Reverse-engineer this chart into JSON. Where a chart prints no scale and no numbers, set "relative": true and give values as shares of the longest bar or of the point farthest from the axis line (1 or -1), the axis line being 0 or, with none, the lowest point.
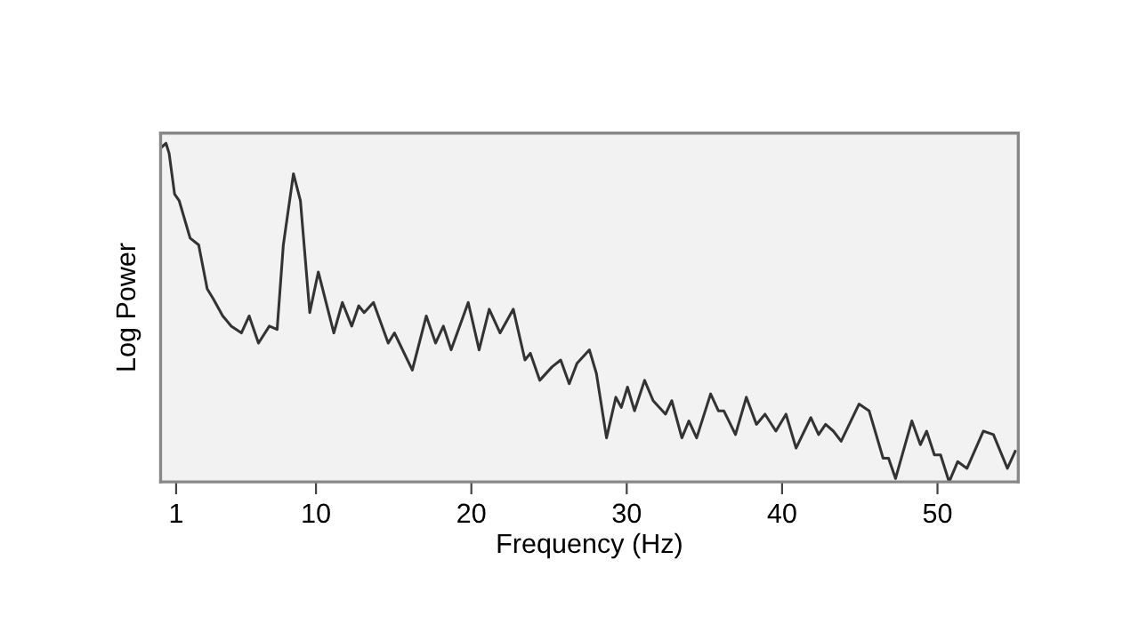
{
  "chart_data": {
    "type": "line",
    "xlabel": "Frequency (Hz)",
    "ylabel": "Log Power",
    "relative": true,
    "xlim": [
      0,
      55.2
    ],
    "xticks": [
      1,
      10,
      20,
      30,
      40,
      50
    ],
    "grid": false,
    "legend": false,
    "tick_labels": "x",
    "series": [
      {
        "color": "#333333",
        "x": [
          0.1,
          0.35,
          0.55,
          0.9,
          1.2,
          1.9,
          2.45,
          3.0,
          3.4,
          4.0,
          4.55,
          5.2,
          5.7,
          6.3,
          7.0,
          7.5,
          7.9,
          8.55,
          9.0,
          9.6,
          10.15,
          11.15,
          11.7,
          12.3,
          12.75,
          13.1,
          13.7,
          14.65,
          15.05,
          16.2,
          17.1,
          17.7,
          18.2,
          18.7,
          19.8,
          20.5,
          21.15,
          21.85,
          22.7,
          23.45,
          23.8,
          24.4,
          25.2,
          25.75,
          26.3,
          26.8,
          27.6,
          28.05,
          28.7,
          29.3,
          29.65,
          30.05,
          30.5,
          31.15,
          31.7,
          32.5,
          32.9,
          33.55,
          34.0,
          34.5,
          35.4,
          35.9,
          36.25,
          37.0,
          37.7,
          38.35,
          38.9,
          39.6,
          40.25,
          40.9,
          41.85,
          42.35,
          42.8,
          43.3,
          43.8,
          44.95,
          45.6,
          46.5,
          46.85,
          47.3,
          48.35,
          48.9,
          49.3,
          49.8,
          50.2,
          50.75,
          51.3,
          51.9,
          52.95,
          53.6,
          54.5,
          55.0
        ],
        "values": [
          0.99,
          1.0,
          0.97,
          0.85,
          0.83,
          0.72,
          0.7,
          0.57,
          0.54,
          0.49,
          0.46,
          0.44,
          0.49,
          0.41,
          0.46,
          0.45,
          0.7,
          0.91,
          0.83,
          0.5,
          0.62,
          0.44,
          0.53,
          0.46,
          0.52,
          0.5,
          0.53,
          0.41,
          0.44,
          0.33,
          0.49,
          0.41,
          0.46,
          0.39,
          0.53,
          0.39,
          0.51,
          0.44,
          0.51,
          0.36,
          0.38,
          0.3,
          0.34,
          0.36,
          0.29,
          0.35,
          0.39,
          0.32,
          0.13,
          0.25,
          0.22,
          0.28,
          0.21,
          0.3,
          0.24,
          0.2,
          0.24,
          0.13,
          0.18,
          0.13,
          0.26,
          0.21,
          0.21,
          0.14,
          0.25,
          0.17,
          0.2,
          0.15,
          0.2,
          0.1,
          0.19,
          0.14,
          0.17,
          0.15,
          0.12,
          0.23,
          0.21,
          0.07,
          0.07,
          0.01,
          0.18,
          0.11,
          0.15,
          0.08,
          0.08,
          0.0,
          0.06,
          0.04,
          0.15,
          0.14,
          0.04,
          0.09
        ]
      }
    ]
  }
}
